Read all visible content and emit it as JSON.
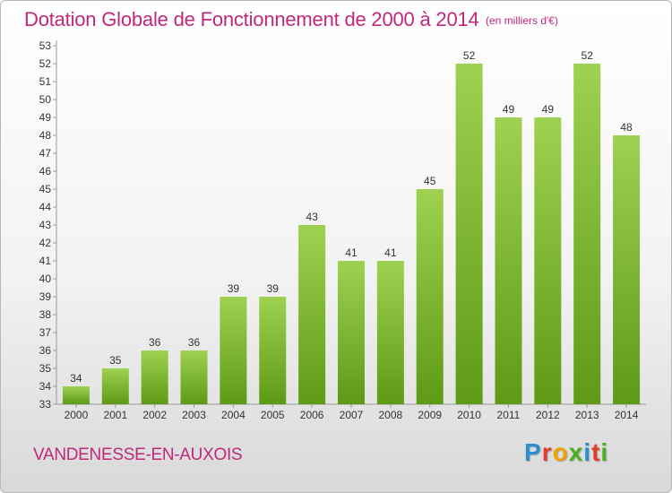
{
  "header": {
    "title": "Dotation Globale de Fonctionnement de 2000 à 2014",
    "unit": "(en milliers d'€)"
  },
  "footer": {
    "commune": "VANDENESSE-EN-AUXOIS",
    "logo": [
      "P",
      "r",
      "o",
      "x",
      "i",
      "t",
      "i"
    ]
  },
  "colors": {
    "title": "#c0287a",
    "bar_light": "#9ed250",
    "bar_dark": "#5e9a16",
    "logo": [
      "#2a8fd0",
      "#e23d2a",
      "#f0a300",
      "#4caf1e",
      "#2a8fd0",
      "#e23d2a",
      "#4caf1e"
    ]
  },
  "chart_data": {
    "type": "bar",
    "categories": [
      "2000",
      "2001",
      "2002",
      "2003",
      "2004",
      "2005",
      "2006",
      "2007",
      "2008",
      "2009",
      "2010",
      "2011",
      "2012",
      "2013",
      "2014"
    ],
    "values": [
      34,
      35,
      36,
      36,
      39,
      39,
      43,
      41,
      41,
      45,
      52,
      49,
      49,
      52,
      48
    ],
    "title": "Dotation Globale de Fonctionnement de 2000 à 2014",
    "ylabel": "",
    "xlabel": "",
    "ylim": [
      33,
      53
    ],
    "yticks": [
      33,
      34,
      35,
      36,
      37,
      38,
      39,
      40,
      41,
      42,
      43,
      44,
      45,
      46,
      47,
      48,
      49,
      50,
      51,
      52,
      53
    ],
    "grid": false,
    "legend": "none",
    "data_labels": true
  }
}
